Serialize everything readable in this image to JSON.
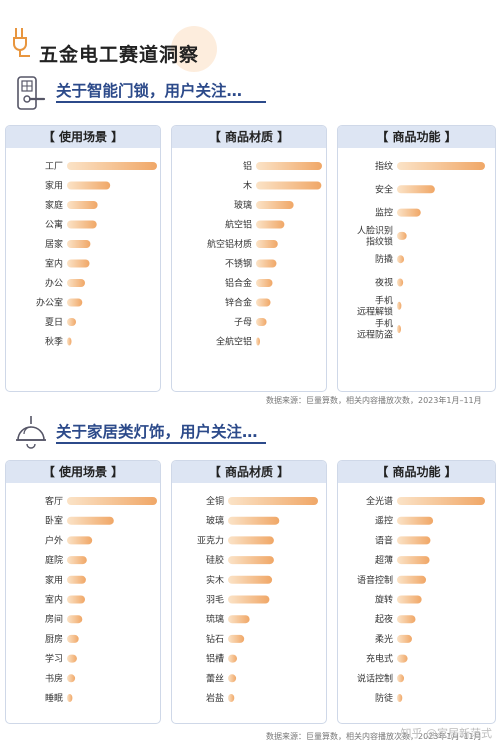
{
  "page_title": "五金电工赛道洞察",
  "sections": [
    {
      "title": "关于智能门锁，用户关注…",
      "source": "数据来源：巨量算数，相关内容播放次数，2023年1月–11月"
    },
    {
      "title": "关于家居类灯饰，用户关注…",
      "source": "数据来源：巨量算数，相关内容播放次数，2023年1月–11月"
    }
  ],
  "watermark": "知乎 @家居新范式",
  "colors": {
    "bar_start": "#fbe3c7",
    "bar_end": "#f0a767",
    "title": "#2c4a8a",
    "panel_head": "#dde5f3"
  },
  "chart_data": [
    {
      "type": "bar",
      "title": "【 使用场景 】",
      "categories": [
        "工厂",
        "家用",
        "家庭",
        "公寓",
        "居家",
        "室内",
        "办公",
        "办公室",
        "夏日",
        "秋季"
      ],
      "values": [
        100,
        48,
        34,
        33,
        26,
        25,
        20,
        17,
        10,
        5
      ],
      "xlim": [
        0,
        100
      ]
    },
    {
      "type": "bar",
      "title": "【 商品材质 】",
      "categories": [
        "铝",
        "木",
        "玻璃",
        "航空铝",
        "航空铝材质",
        "不锈钢",
        "铝合金",
        "锌合金",
        "子母",
        "全航空铝"
      ],
      "values": [
        100,
        99,
        57,
        43,
        33,
        31,
        25,
        22,
        16,
        6
      ],
      "xlim": [
        0,
        100
      ]
    },
    {
      "type": "bar",
      "title": "【 商品功能 】",
      "categories": [
        "指纹",
        "安全",
        "监控",
        "人脸识别\n指纹锁",
        "防撬",
        "夜视",
        "手机\n远程解锁",
        "手机\n远程防盗"
      ],
      "values": [
        100,
        43,
        27,
        11,
        8,
        7,
        5,
        4
      ],
      "xlim": [
        0,
        100
      ]
    },
    {
      "type": "bar",
      "title": "【 使用场景 】",
      "categories": [
        "客厅",
        "卧室",
        "户外",
        "庭院",
        "家用",
        "室内",
        "房间",
        "厨房",
        "学习",
        "书房",
        "睡眠"
      ],
      "values": [
        100,
        52,
        28,
        22,
        21,
        20,
        17,
        13,
        11,
        9,
        6
      ],
      "xlim": [
        0,
        100
      ]
    },
    {
      "type": "bar",
      "title": "【 商品材质 】",
      "categories": [
        "全铜",
        "玻璃",
        "亚克力",
        "硅胶",
        "实木",
        "羽毛",
        "琉璃",
        "钻石",
        "铝槽",
        "蕾丝",
        "岩盐"
      ],
      "values": [
        100,
        57,
        51,
        51,
        49,
        46,
        24,
        18,
        10,
        9,
        7
      ],
      "xlim": [
        0,
        100
      ]
    },
    {
      "type": "bar",
      "title": "【 商品功能 】",
      "categories": [
        "全光谱",
        "遥控",
        "语音",
        "超薄",
        "语音控制",
        "旋转",
        "起夜",
        "柔光",
        "充电式",
        "说话控制",
        "防徒"
      ],
      "values": [
        100,
        41,
        38,
        37,
        33,
        28,
        21,
        17,
        12,
        8,
        6
      ],
      "xlim": [
        0,
        100
      ]
    }
  ]
}
